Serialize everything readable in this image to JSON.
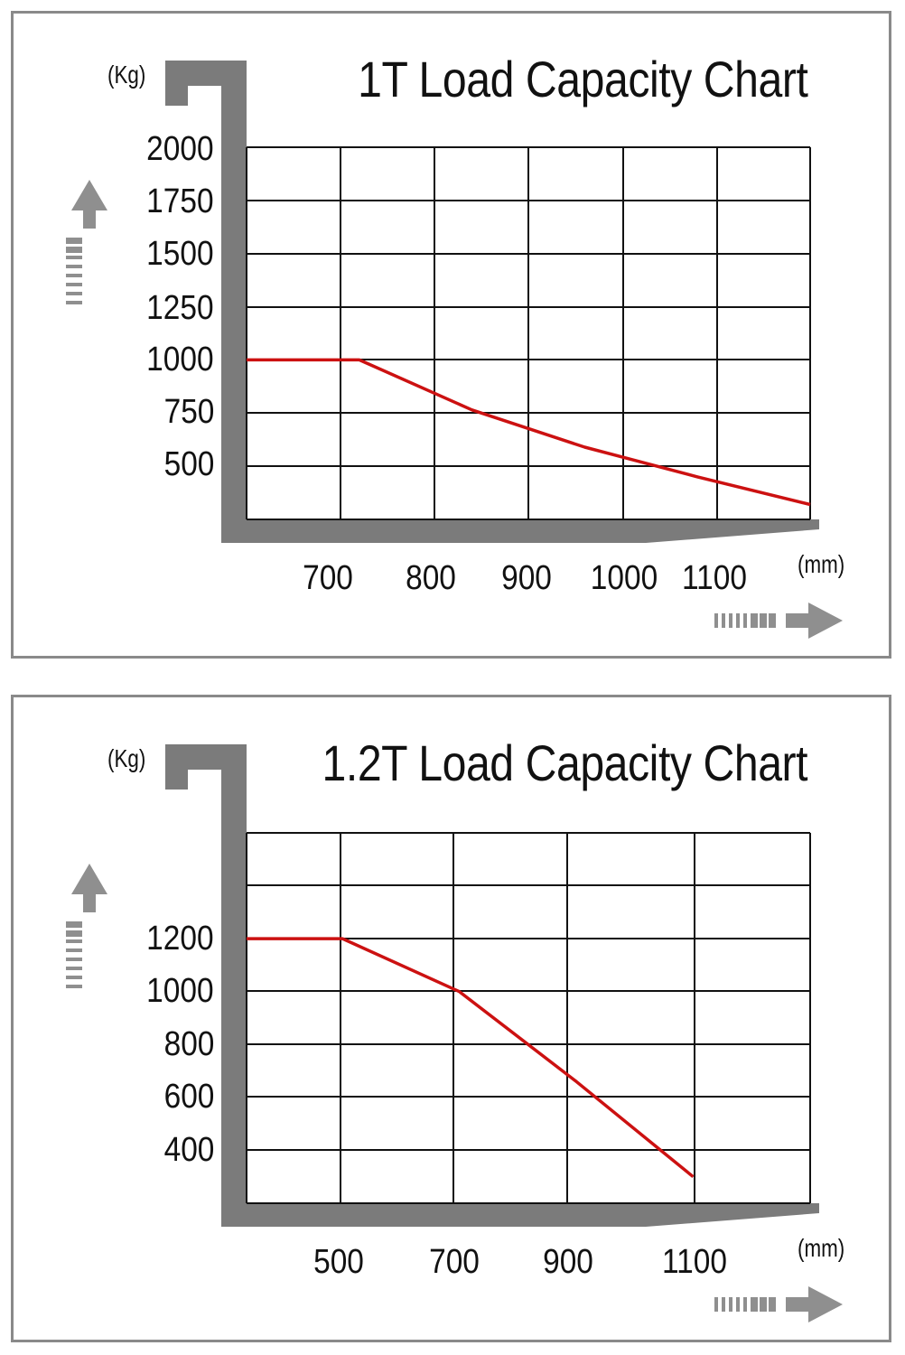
{
  "colors": {
    "frame": "#8a8a8a",
    "axis_bar": "#7b7b7b",
    "grid": "#111111",
    "curve": "#cc1111",
    "arrow": "#8f8f8f"
  },
  "icons": [
    "arrow-up-icon",
    "arrow-right-icon"
  ],
  "chart_data": [
    {
      "type": "line",
      "title": "1T Load Capacity Chart",
      "ylabel": "(Kg)",
      "xlabel": "(mm)",
      "x_tick_labels": [
        "700",
        "800",
        "900",
        "1000",
        "1100"
      ],
      "y_tick_labels": [
        "2000",
        "1750",
        "1500",
        "1250",
        "1000",
        "750",
        "500"
      ],
      "xlim": [
        600,
        1100
      ],
      "ylim": [
        250,
        2000
      ],
      "grid": true,
      "series": [
        {
          "x": [
            600,
            700,
            800,
            900,
            1000,
            1100
          ],
          "values": [
            1000,
            1000,
            765,
            590,
            450,
            320
          ]
        }
      ]
    },
    {
      "type": "line",
      "title": "1.2T Load Capacity Chart",
      "ylabel": "(Kg)",
      "xlabel": "(mm)",
      "x_tick_labels": [
        "500",
        "700",
        "900",
        "1100"
      ],
      "y_tick_labels": [
        "1200",
        "1000",
        "800",
        "600",
        "400"
      ],
      "xlim": [
        336,
        1300
      ],
      "ylim": [
        200,
        1600
      ],
      "grid": true,
      "series": [
        {
          "x": [
            336,
            500,
            700,
            900,
            1100
          ],
          "values": [
            1200,
            1200,
            1000,
            660,
            300
          ]
        }
      ]
    }
  ]
}
